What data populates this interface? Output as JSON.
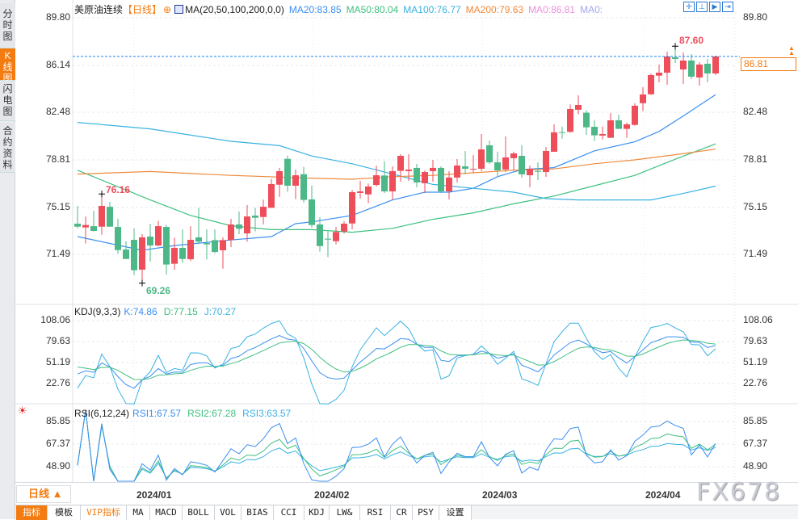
{
  "sidebar": {
    "tabs": [
      {
        "label": "分时图",
        "active": false
      },
      {
        "label": "K线图",
        "active": true
      },
      {
        "label": "闪电图",
        "active": false
      },
      {
        "label": "合约资料",
        "active": false
      }
    ]
  },
  "header": {
    "symbol": "美原油连续",
    "period": "【日线】",
    "ma_name": "MA(20,50,100,200,0,0)",
    "ma20": "MA20:83.85",
    "ma50": "MA50:80.04",
    "ma100": "MA100:76.77",
    "ma200": "MA200:79.63",
    "ma0a": "MA0:86.81",
    "ma0b": "MA0:"
  },
  "toolbar_icons": [
    "crosshair-icon",
    "range-start-icon",
    "play-icon",
    "goto-end-icon"
  ],
  "colors": {
    "up": "#ee4d5a",
    "down": "#4cb887",
    "ma20": "#3b8ff0",
    "ma50": "#3fc07f",
    "ma100": "#39b2e2",
    "ma200": "#f08a3c",
    "ma0a": "#ee8fdc",
    "ma0b": "#a2a6ee",
    "accent": "#f47b10",
    "k": "#3b8ff0",
    "d": "#3fc07f",
    "j": "#39b2e2"
  },
  "price_axis": {
    "labels": [
      "89.80",
      "86.14",
      "82.48",
      "78.81",
      "75.15",
      "71.49"
    ]
  },
  "last_price": "86.81",
  "annotations": {
    "high_left": "76.16",
    "low": "69.26",
    "high_right": "87.60"
  },
  "kdj": {
    "title": "KDJ(9,3,3)",
    "k": "K:74.86",
    "d": "D:77.15",
    "j": "J:70.27",
    "axis": [
      "108.06",
      "79.63",
      "51.19",
      "22.76"
    ]
  },
  "rsi": {
    "title": "RSI(6,12,24)",
    "rsi1": "RSI1:67.57",
    "rsi2": "RSI2:67.28",
    "rsi3": "RSI3:63.57",
    "axis": [
      "85.85",
      "67.37",
      "48.90"
    ]
  },
  "period_selector": "日线 ▲",
  "dates": [
    "2024/01",
    "2024/02",
    "2024/03",
    "2024/04"
  ],
  "bottom_tabs": [
    "指标",
    "模板",
    "VIP指标",
    "MA",
    "MACD",
    "BOLL",
    "VOL",
    "BIAS",
    "CCI",
    "KDJ",
    "LW&",
    "RSI",
    "CR",
    "PSY",
    "设置"
  ],
  "watermark": "FX678",
  "chart_data": {
    "type": "candlestick",
    "ylim": [
      69.0,
      89.8
    ],
    "ohlc": [
      [
        73.86,
        75.24,
        73.51,
        73.63
      ],
      [
        73.57,
        74.42,
        72.32,
        73.76
      ],
      [
        73.67,
        74.86,
        73.26,
        73.3
      ],
      [
        73.63,
        76.16,
        73.0,
        75.24
      ],
      [
        75.17,
        75.55,
        73.63,
        73.63
      ],
      [
        73.61,
        74.24,
        71.55,
        71.82
      ],
      [
        71.86,
        72.49,
        71.13,
        71.13
      ],
      [
        72.61,
        73.49,
        69.88,
        70.26
      ],
      [
        70.3,
        73.05,
        69.26,
        72.8
      ],
      [
        72.86,
        73.84,
        70.93,
        72.17
      ],
      [
        72.17,
        74.09,
        72.11,
        73.67
      ],
      [
        73.61,
        73.76,
        69.93,
        70.7
      ],
      [
        70.76,
        72.78,
        70.3,
        71.99
      ],
      [
        71.99,
        73.42,
        70.84,
        71.13
      ],
      [
        71.11,
        73.67,
        70.97,
        72.61
      ],
      [
        72.8,
        75.09,
        72.28,
        72.47
      ],
      [
        72.36,
        73.42,
        71.09,
        72.26
      ],
      [
        72.59,
        73.42,
        71.59,
        71.67
      ],
      [
        71.8,
        72.8,
        70.38,
        72.59
      ],
      [
        72.59,
        74.24,
        72.05,
        73.8
      ],
      [
        73.8,
        74.8,
        73.05,
        73.47
      ],
      [
        73.11,
        75.3,
        72.47,
        74.42
      ],
      [
        74.49,
        75.09,
        73.26,
        74.32
      ],
      [
        74.38,
        75.72,
        73.8,
        75.17
      ],
      [
        75.09,
        77.32,
        75.09,
        76.93
      ],
      [
        76.88,
        78.18,
        75.93,
        77.93
      ],
      [
        78.88,
        79.13,
        76.34,
        76.8
      ],
      [
        76.8,
        78.05,
        75.76,
        77.61
      ],
      [
        77.69,
        78.26,
        75.49,
        75.7
      ],
      [
        75.74,
        76.8,
        73.57,
        73.76
      ],
      [
        73.8,
        74.36,
        71.7,
        72.13
      ],
      [
        72.7,
        73.26,
        71.28,
        72.63
      ],
      [
        72.51,
        73.61,
        72.26,
        73.22
      ],
      [
        73.26,
        74.05,
        73.09,
        73.86
      ],
      [
        73.88,
        76.47,
        73.42,
        76.3
      ],
      [
        76.24,
        77.18,
        75.8,
        76.36
      ],
      [
        76.13,
        76.97,
        75.45,
        76.74
      ],
      [
        76.86,
        78.36,
        76.74,
        77.61
      ],
      [
        77.59,
        78.68,
        76.24,
        76.36
      ],
      [
        76.36,
        78.3,
        75.68,
        77.93
      ],
      [
        77.95,
        79.24,
        77.11,
        79.11
      ],
      [
        77.93,
        79.24,
        77.18,
        78.05
      ],
      [
        78.18,
        78.49,
        76.68,
        77.05
      ],
      [
        76.99,
        77.99,
        76.24,
        77.86
      ],
      [
        77.93,
        78.8,
        77.11,
        78.18
      ],
      [
        78.18,
        78.3,
        76.24,
        76.36
      ],
      [
        76.36,
        77.93,
        75.74,
        77.43
      ],
      [
        77.43,
        78.86,
        77.05,
        78.36
      ],
      [
        78.3,
        79.49,
        77.68,
        78.11
      ],
      [
        78.05,
        79.18,
        77.8,
        78.11
      ],
      [
        78.11,
        80.8,
        77.93,
        79.61
      ],
      [
        79.93,
        80.3,
        78.49,
        78.61
      ],
      [
        78.61,
        79.43,
        77.49,
        77.99
      ],
      [
        78.05,
        80.61,
        77.86,
        78.99
      ],
      [
        78.93,
        79.43,
        77.99,
        79.3
      ],
      [
        79.11,
        79.93,
        77.43,
        77.68
      ],
      [
        77.61,
        78.36,
        76.68,
        78.11
      ],
      [
        77.95,
        78.61,
        77.24,
        77.88
      ],
      [
        77.86,
        79.8,
        77.49,
        79.49
      ],
      [
        79.43,
        81.55,
        79.43,
        80.93
      ],
      [
        80.95,
        81.38,
        80.45,
        80.9
      ],
      [
        80.97,
        83.09,
        80.9,
        82.74
      ],
      [
        82.68,
        83.8,
        82.32,
        83.05
      ],
      [
        82.45,
        82.63,
        80.74,
        81.32
      ],
      [
        81.36,
        81.88,
        80.26,
        80.7
      ],
      [
        80.68,
        81.38,
        80.38,
        80.8
      ],
      [
        80.51,
        82.43,
        80.51,
        81.86
      ],
      [
        81.86,
        82.3,
        81.2,
        81.2
      ],
      [
        81.2,
        81.68,
        80.51,
        81.55
      ],
      [
        81.51,
        83.18,
        81.45,
        82.99
      ],
      [
        83.19,
        84.43,
        82.57,
        83.86
      ],
      [
        83.88,
        85.49,
        83.82,
        85.36
      ],
      [
        85.32,
        86.18,
        84.8,
        85.55
      ],
      [
        85.55,
        87.18,
        84.61,
        86.8
      ],
      [
        86.74,
        87.6,
        86.3,
        86.61
      ],
      [
        85.8,
        87.11,
        84.68,
        86.49
      ],
      [
        86.49,
        86.99,
        85.05,
        85.24
      ],
      [
        85.18,
        86.36,
        84.55,
        86.18
      ],
      [
        86.24,
        86.61,
        84.8,
        85.49
      ],
      [
        85.49,
        86.86,
        85.36,
        86.81
      ]
    ],
    "ma": {
      "MA20": [
        [
          1,
          72.86
        ],
        [
          9,
          71.8
        ],
        [
          13,
          72.17
        ],
        [
          20,
          72.6
        ],
        [
          25,
          72.86
        ],
        [
          28,
          73.86
        ],
        [
          30,
          74.0
        ],
        [
          35,
          74.5
        ],
        [
          40,
          75.7
        ],
        [
          44,
          76.3
        ],
        [
          47,
          76.3
        ],
        [
          50,
          76.6
        ],
        [
          53,
          77.5
        ],
        [
          56,
          78.05
        ],
        [
          60,
          78.2
        ],
        [
          65,
          79.5
        ],
        [
          70,
          80.2
        ],
        [
          73,
          81.0
        ],
        [
          76,
          82.2
        ],
        [
          80,
          83.85
        ]
      ],
      "MA50": [
        [
          1,
          78.0
        ],
        [
          10,
          75.7
        ],
        [
          15,
          74.5
        ],
        [
          20,
          73.7
        ],
        [
          25,
          73.4
        ],
        [
          30,
          73.4
        ],
        [
          35,
          73.2
        ],
        [
          40,
          73.5
        ],
        [
          45,
          74.2
        ],
        [
          50,
          74.7
        ],
        [
          55,
          75.4
        ],
        [
          60,
          76.0
        ],
        [
          65,
          76.8
        ],
        [
          70,
          77.6
        ],
        [
          75,
          78.85
        ],
        [
          80,
          80.04
        ]
      ],
      "MA100": [
        [
          1,
          81.7
        ],
        [
          10,
          81.2
        ],
        [
          20,
          80.24
        ],
        [
          26,
          79.9
        ],
        [
          30,
          79.1
        ],
        [
          35,
          78.5
        ],
        [
          40,
          77.7
        ],
        [
          45,
          76.9
        ],
        [
          50,
          76.6
        ],
        [
          55,
          76.3
        ],
        [
          59,
          75.8
        ],
        [
          63,
          75.7
        ],
        [
          72,
          75.7
        ],
        [
          76,
          76.2
        ],
        [
          80,
          76.77
        ]
      ],
      "MA200": [
        [
          1,
          77.7
        ],
        [
          10,
          77.9
        ],
        [
          20,
          77.6
        ],
        [
          29,
          77.4
        ],
        [
          35,
          77.3
        ],
        [
          40,
          77.5
        ],
        [
          45,
          77.6
        ],
        [
          50,
          77.8
        ],
        [
          55,
          78.0
        ],
        [
          60,
          78.1
        ],
        [
          65,
          78.5
        ],
        [
          70,
          78.8
        ],
        [
          75,
          79.2
        ],
        [
          80,
          79.63
        ]
      ]
    },
    "kdj_range": [
      0,
      120
    ],
    "rsi_range": [
      35,
      95
    ]
  }
}
